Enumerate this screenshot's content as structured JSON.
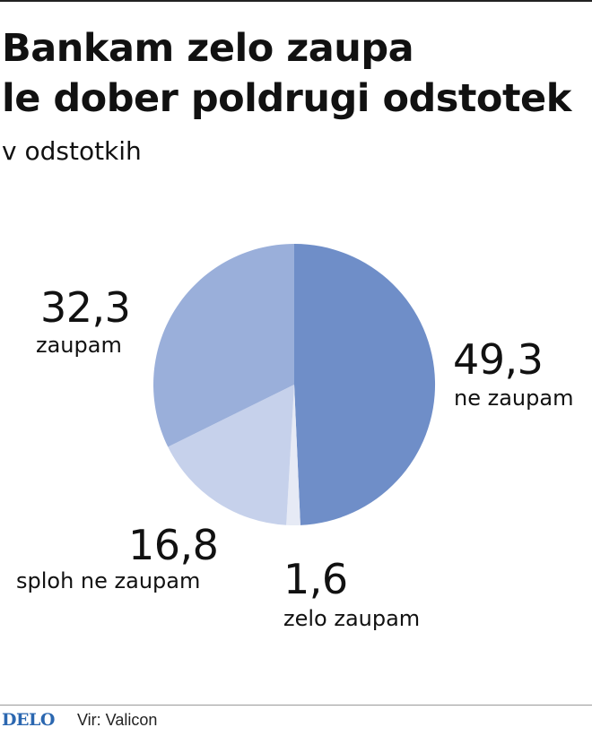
{
  "title_lines": [
    "Bankam zelo zaupa",
    "le dober poldrugi odstotek"
  ],
  "subtitle": "v odstotkih",
  "source": "Vir: Valicon",
  "logo": "DELO",
  "chart_data": {
    "type": "pie",
    "title": "Bankam zelo zaupa le dober poldrugi odstotek",
    "subtitle": "v odstotkih",
    "slices": [
      {
        "label": "ne zaupam",
        "value": 49.3,
        "value_text": "49,3",
        "color": "#6f8ec8"
      },
      {
        "label": "zelo zaupam",
        "value": 1.6,
        "value_text": "1,6",
        "color": "#e6eaf5"
      },
      {
        "label": "sploh ne zaupam",
        "value": 16.8,
        "value_text": "16,8",
        "color": "#c6d1eb"
      },
      {
        "label": "zaupam",
        "value": 32.3,
        "value_text": "32,3",
        "color": "#9aafda"
      }
    ]
  }
}
